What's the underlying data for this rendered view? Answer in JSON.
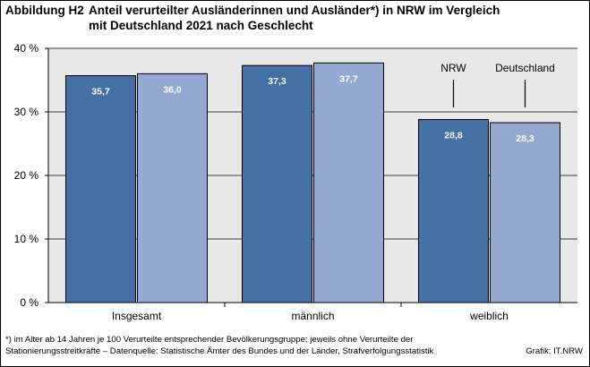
{
  "figure": {
    "prefix": "Abbildung H2",
    "title_line1": "Anteil verurteilter Ausländerinnen und Ausländer*) in NRW im Vergleich",
    "title_line2": "mit Deutschland 2021 nach Geschlecht",
    "footnote_line1": "*) im Alter ab 14 Jahren je 100 Verurteilte entsprechender Bevölkerungsgruppe;  jeweils ohne Verurteilte der",
    "footnote_line2": "Stationierungsstreitkräfte  – Datenquelle:  Statistische Ämter des Bundes und der Länder,  Strafverfolgungsstatistik",
    "credit": "Grafik: IT.NRW"
  },
  "chart_data": {
    "type": "bar",
    "categories": [
      "Insgesamt",
      "männlich",
      "weiblich"
    ],
    "series": [
      {
        "name": "NRW",
        "values": [
          35.7,
          37.3,
          28.8
        ],
        "labels": [
          "35,7",
          "37,3",
          "28,8"
        ],
        "color": "#4470a6"
      },
      {
        "name": "Deutschland",
        "values": [
          36.0,
          37.7,
          28.3
        ],
        "labels": [
          "36,0",
          "37,7",
          "28,3"
        ],
        "color": "#93a9d2"
      }
    ],
    "ylim": [
      0,
      40
    ],
    "yticks": [
      0,
      10,
      20,
      30,
      40
    ],
    "ytick_labels": [
      "0 %",
      "10 %",
      "20 %",
      "30 %",
      "40 %"
    ],
    "plot_background": "#e8e8e8",
    "grid": "horizontal",
    "legend": "annotations above the weiblich bars"
  }
}
